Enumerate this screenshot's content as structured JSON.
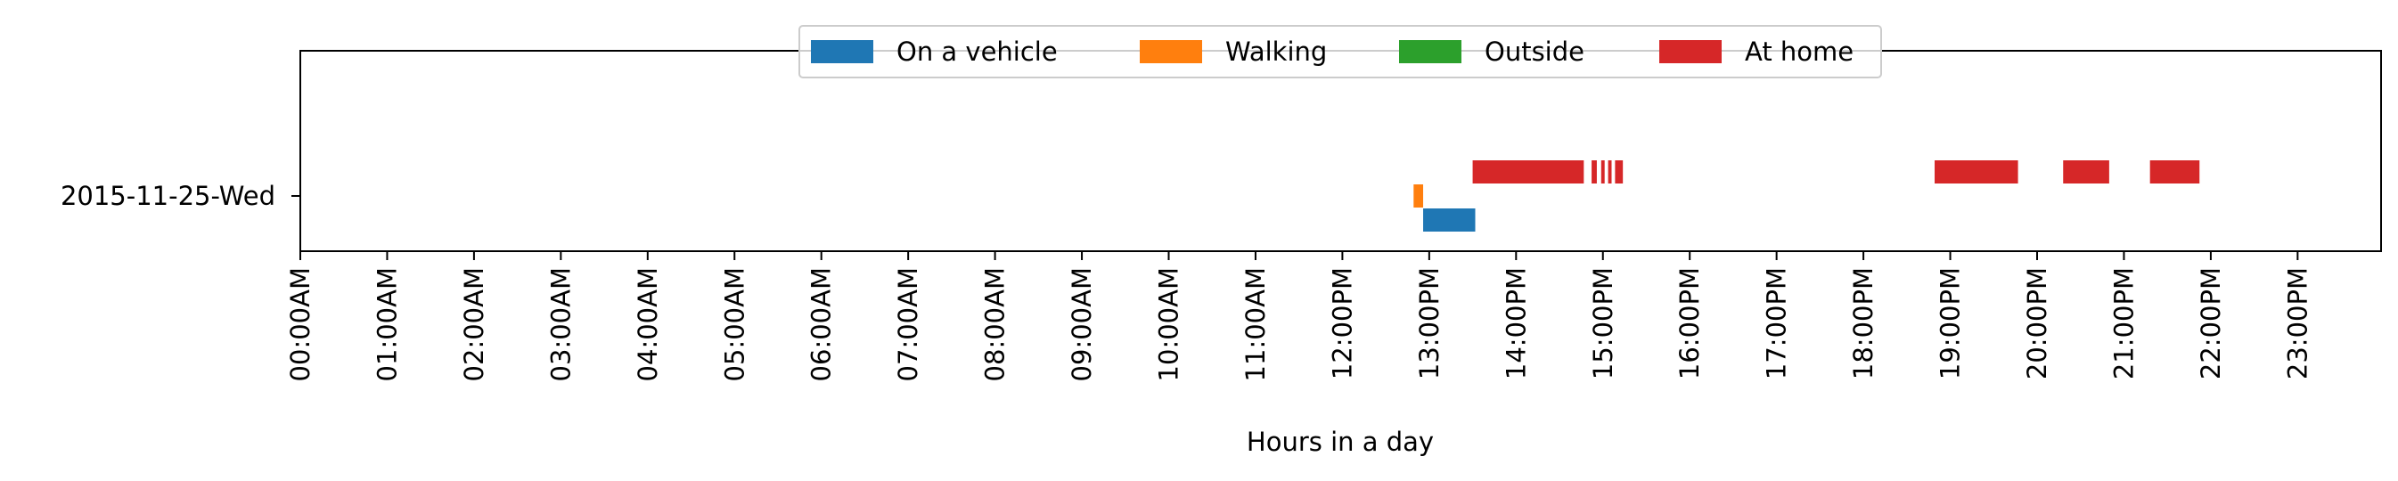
{
  "chart_data": {
    "type": "timeline",
    "title": "",
    "xlabel": "Hours in a day",
    "ylabel": "",
    "xlim": [
      0,
      24
    ],
    "x_ticks": [
      0,
      1,
      2,
      3,
      4,
      5,
      6,
      7,
      8,
      9,
      10,
      11,
      12,
      13,
      14,
      15,
      16,
      17,
      18,
      19,
      20,
      21,
      22,
      23
    ],
    "x_tick_labels": [
      "00:00AM",
      "01:00AM",
      "02:00AM",
      "03:00AM",
      "04:00AM",
      "05:00AM",
      "06:00AM",
      "07:00AM",
      "08:00AM",
      "09:00AM",
      "10:00AM",
      "11:00AM",
      "12:00PM",
      "13:00PM",
      "14:00PM",
      "15:00PM",
      "16:00PM",
      "17:00PM",
      "18:00PM",
      "19:00PM",
      "20:00PM",
      "21:00PM",
      "22:00PM",
      "23:00PM"
    ],
    "categories": [
      "2015-11-25-Wed"
    ],
    "legend_position": "top-center",
    "series": [
      {
        "name": "On a vehicle",
        "color": "#1f77b4",
        "lane": -1,
        "intervals": [
          [
            12.93,
            13.53
          ]
        ]
      },
      {
        "name": "Walking",
        "color": "#ff7f0e",
        "lane": 0,
        "intervals": [
          [
            12.82,
            12.93
          ]
        ]
      },
      {
        "name": "Outside",
        "color": "#2ca02c",
        "lane": 0,
        "intervals": []
      },
      {
        "name": "At home",
        "color": "#d62728",
        "lane": 1,
        "intervals": [
          [
            13.5,
            14.78
          ],
          [
            14.87,
            14.93
          ],
          [
            14.98,
            15.02
          ],
          [
            15.06,
            15.1
          ],
          [
            15.14,
            15.23
          ],
          [
            18.82,
            19.78
          ],
          [
            20.3,
            20.83
          ],
          [
            21.3,
            21.87
          ]
        ]
      }
    ]
  }
}
